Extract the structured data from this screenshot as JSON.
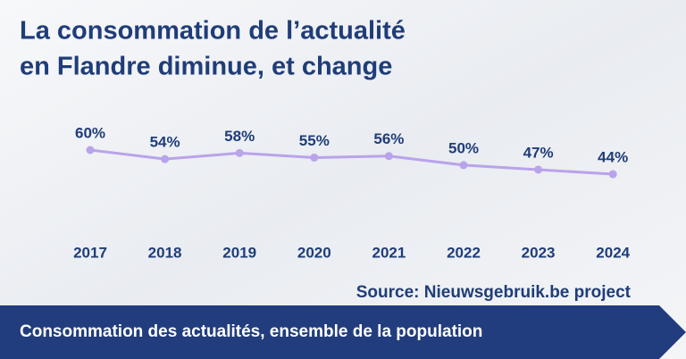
{
  "chart_data": {
    "type": "line",
    "title": [
      "La consommation de l’actualité",
      "en Flandre diminue, et change"
    ],
    "categories": [
      "2017",
      "2018",
      "2019",
      "2020",
      "2021",
      "2022",
      "2023",
      "2024"
    ],
    "values": [
      60,
      54,
      58,
      55,
      56,
      50,
      47,
      44
    ],
    "value_labels": [
      "60%",
      "54%",
      "58%",
      "55%",
      "56%",
      "50%",
      "47%",
      "44%"
    ],
    "color": "#b9a3ea",
    "source": "Source: Nieuwsgebruik.be project",
    "banner": "Consommation des actualités, ensemble de la population"
  }
}
